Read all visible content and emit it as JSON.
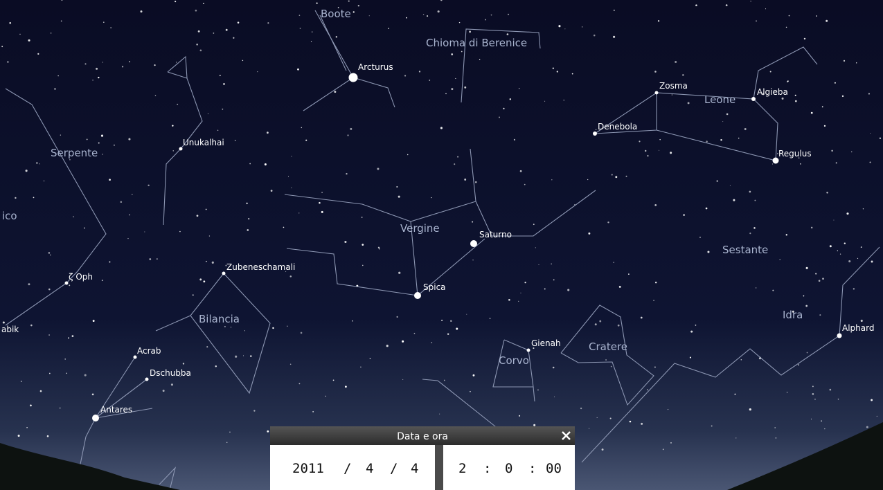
{
  "sky": {
    "constellations": {
      "boote": "Boote",
      "chioma": "Chioma di Berenice",
      "leone": "Leone",
      "serpente": "Serpente",
      "vergine": "Vergine",
      "sestante": "Sestante",
      "bilancia": "Bilancia",
      "idra": "Idra",
      "corvo": "Corvo",
      "cratere": "Cratere",
      "edge_left": "ico"
    },
    "stars": {
      "arcturus": "Arcturus",
      "zosma": "Zosma",
      "algieba": "Algieba",
      "denebola": "Denebola",
      "regulus": "Regulus",
      "unukalhai": "Unukalhai",
      "saturno": "Saturno",
      "spica": "Spica",
      "zubeneschamali": "Zubeneschamali",
      "zeta_oph": "ζ Oph",
      "acrab": "Acrab",
      "dschubba": "Dschubba",
      "antares": "Antares",
      "gienah": "Gienah",
      "alphard": "Alphard",
      "edge_left": "abik"
    }
  },
  "dialog": {
    "title": "Data e ora",
    "date": {
      "year": "2011",
      "month": "4",
      "day": "4",
      "separator": "/"
    },
    "time": {
      "hour": "2",
      "minute": "0",
      "second": "00",
      "separator": ":"
    }
  }
}
